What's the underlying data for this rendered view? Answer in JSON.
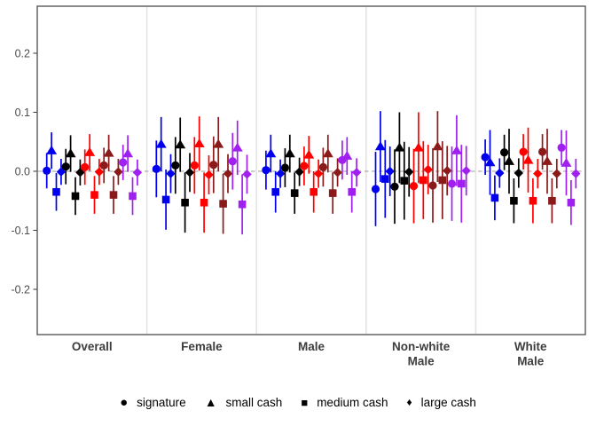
{
  "figure": {
    "background": "#FFFFFF",
    "panel_border_color": "#595959",
    "facet_divider_color": "#E3E3E3",
    "zero_line_color": "#9B9B9B",
    "tick_color": "#333333",
    "axis_text_color": "#4D4D4D",
    "facet_label_color": "#3D3D3D"
  },
  "legend": {
    "items": [
      {
        "label": "signature",
        "shape": "circle",
        "icon": "circle-icon",
        "glyph": "●"
      },
      {
        "label": "small cash",
        "shape": "triangle",
        "icon": "triangle-icon",
        "glyph": "▲"
      },
      {
        "label": "medium cash",
        "shape": "square",
        "icon": "square-icon",
        "glyph": "■"
      },
      {
        "label": "large cash",
        "shape": "diamond",
        "icon": "diamond-icon",
        "glyph": "♦"
      }
    ]
  },
  "chart_data": {
    "type": "scatter",
    "subtype": "dodged-pointrange-with-ci",
    "title": "",
    "xlabel": "",
    "ylabel": "",
    "ylim": [
      -0.28,
      0.28
    ],
    "yticks": [
      0.2,
      0.1,
      0.0,
      -0.1,
      -0.2
    ],
    "ytick_labels": [
      "0.2",
      "0.1",
      "0.0",
      "-0.1",
      "-0.2"
    ],
    "zero_reference_line": 0.0,
    "grid": "off",
    "legend_position": "bottom",
    "facet_keys": [
      "overall",
      "female",
      "male",
      "nonwhite_male",
      "white_male"
    ],
    "facet_labels": [
      [
        "Overall"
      ],
      [
        "Female"
      ],
      [
        "Male"
      ],
      [
        "Non-white",
        "Male"
      ],
      [
        "White",
        "Male"
      ]
    ],
    "shape_order": [
      "circle",
      "triangle",
      "square",
      "diamond"
    ],
    "shape_labels": [
      "signature",
      "small cash",
      "medium cash",
      "large cash"
    ],
    "color_groups": [
      {
        "name": "group-1",
        "color": "#0000EE"
      },
      {
        "name": "group-2",
        "color": "#000000"
      },
      {
        "name": "group-3",
        "color": "#FF0000"
      },
      {
        "name": "group-4",
        "color": "#8B1A1A"
      },
      {
        "name": "group-5",
        "color": "#A020F0"
      }
    ],
    "values": {
      "overall": {
        "group-1": [
          0.001,
          0.035,
          -0.035,
          -0.001
        ],
        "group-2": [
          0.008,
          0.03,
          -0.042,
          -0.002
        ],
        "group-3": [
          0.007,
          0.032,
          -0.04,
          -0.001
        ],
        "group-4": [
          0.01,
          0.031,
          -0.04,
          -0.001
        ],
        "group-5": [
          0.015,
          0.03,
          -0.042,
          -0.002
        ]
      },
      "female": {
        "group-1": [
          0.004,
          0.046,
          -0.048,
          -0.004
        ],
        "group-2": [
          0.01,
          0.045,
          -0.053,
          -0.002
        ],
        "group-3": [
          0.01,
          0.047,
          -0.053,
          -0.006
        ],
        "group-4": [
          0.011,
          0.046,
          -0.055,
          -0.004
        ],
        "group-5": [
          0.017,
          0.04,
          -0.056,
          -0.005
        ]
      },
      "male": {
        "group-1": [
          0.002,
          0.03,
          -0.035,
          -0.004
        ],
        "group-2": [
          0.006,
          0.03,
          -0.037,
          -0.001
        ],
        "group-3": [
          0.009,
          0.028,
          -0.035,
          -0.004
        ],
        "group-4": [
          0.007,
          0.03,
          -0.037,
          -0.002
        ],
        "group-5": [
          0.019,
          0.026,
          -0.035,
          -0.002
        ]
      },
      "nonwhite_male": {
        "group-1": [
          -0.03,
          0.042,
          -0.013,
          0.0
        ],
        "group-2": [
          -0.026,
          0.04,
          -0.016,
          -0.001
        ],
        "group-3": [
          -0.025,
          0.04,
          -0.015,
          0.003
        ],
        "group-4": [
          -0.024,
          0.042,
          -0.015,
          0.001
        ],
        "group-5": [
          -0.021,
          0.035,
          -0.021,
          0.001
        ]
      },
      "white_male": {
        "group-1": [
          0.024,
          0.015,
          -0.045,
          -0.003
        ],
        "group-2": [
          0.032,
          0.017,
          -0.05,
          -0.003
        ],
        "group-3": [
          0.033,
          0.019,
          -0.05,
          -0.004
        ],
        "group-4": [
          0.033,
          0.017,
          -0.05,
          -0.004
        ],
        "group-5": [
          0.04,
          0.014,
          -0.053,
          -0.004
        ]
      }
    },
    "ci_half_width": {
      "overall": [
        0.03,
        0.031,
        0.032,
        0.022
      ],
      "female": [
        0.048,
        0.046,
        0.051,
        0.033
      ],
      "male": [
        0.033,
        0.032,
        0.035,
        0.024
      ],
      "nonwhite_male": [
        0.063,
        0.06,
        0.066,
        0.042
      ],
      "white_male": [
        0.03,
        0.055,
        0.038,
        0.025
      ]
    }
  }
}
